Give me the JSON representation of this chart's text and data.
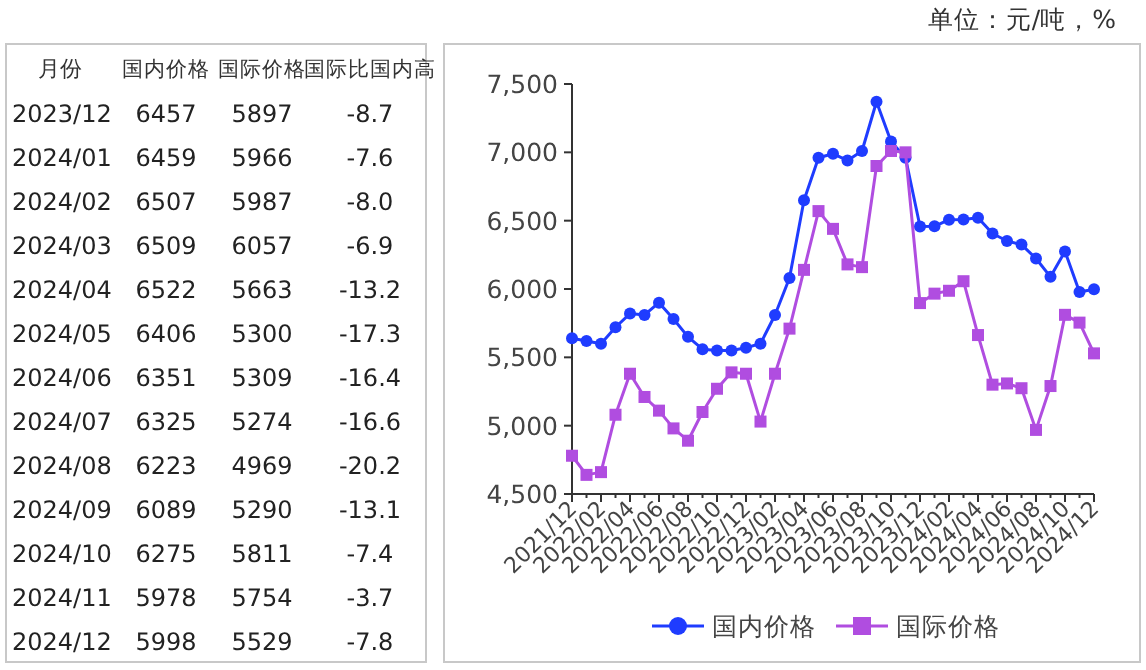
{
  "chart_data": [
    {
      "type": "heatmap",
      "ylabel": "月份",
      "categories": [
        "国内价格",
        "国际价格",
        "国际比国内高"
      ],
      "y_categories": [
        "2023/12",
        "2024/01",
        "2024/02",
        "2024/03",
        "2024/04",
        "2024/05",
        "2024/06",
        "2024/07",
        "2024/08",
        "2024/09",
        "2024/10",
        "2024/11",
        "2024/12"
      ],
      "cells": [
        [
          6457,
          5897,
          -8.7
        ],
        [
          6459,
          5966,
          -7.6
        ],
        [
          6507,
          5987,
          -8.0
        ],
        [
          6509,
          6057,
          -6.9
        ],
        [
          6522,
          5663,
          -13.2
        ],
        [
          6406,
          5300,
          -17.3
        ],
        [
          6351,
          5309,
          -16.4
        ],
        [
          6325,
          5274,
          -16.6
        ],
        [
          6223,
          4969,
          -20.2
        ],
        [
          6089,
          5290,
          -13.1
        ],
        [
          6275,
          5811,
          -7.4
        ],
        [
          5978,
          5754,
          -3.7
        ],
        [
          5998,
          5529,
          -7.8
        ]
      ],
      "data_labels": true,
      "cell_labels": [
        [
          "6457",
          "5897",
          "-8.7"
        ],
        [
          "6459",
          "5966",
          "-7.6"
        ],
        [
          "6507",
          "5987",
          "-8.0"
        ],
        [
          "6509",
          "6057",
          "-6.9"
        ],
        [
          "6522",
          "5663",
          "-13.2"
        ],
        [
          "6406",
          "5300",
          "-17.3"
        ],
        [
          "6351",
          "5309",
          "-16.4"
        ],
        [
          "6325",
          "5274",
          "-16.6"
        ],
        [
          "6223",
          "4969",
          "-20.2"
        ],
        [
          "6089",
          "5290",
          "-13.1"
        ],
        [
          "6275",
          "5811",
          "-7.4"
        ],
        [
          "5978",
          "5754",
          "-3.7"
        ],
        [
          "5998",
          "5529",
          "-7.8"
        ]
      ]
    },
    {
      "type": "line",
      "annotations": [
        "单位：元/吨，%"
      ],
      "categories": [
        "2021/12",
        null,
        "2022/02",
        null,
        "2022/04",
        null,
        "2022/06",
        null,
        "2022/08",
        null,
        "2022/10",
        null,
        "2022/12",
        null,
        "2023/02",
        null,
        "2023/04",
        null,
        "2023/06",
        null,
        "2023/08",
        null,
        "2023/10",
        null,
        "2023/12",
        null,
        "2024/02",
        null,
        "2024/04",
        null,
        "2024/06",
        null,
        "2024/08",
        null,
        "2024/10",
        null,
        "2024/12"
      ],
      "ylim": [
        4500,
        7500
      ],
      "yticks": [
        {
          "value": 4500,
          "label": "4,500"
        },
        {
          "value": 5000,
          "label": "5,000"
        },
        {
          "value": 5500,
          "label": "5,500"
        },
        {
          "value": 6000,
          "label": "6,000"
        },
        {
          "value": 6500,
          "label": "6,500"
        },
        {
          "value": 7000,
          "label": "7,000"
        },
        {
          "value": 7500,
          "label": "7,500"
        }
      ],
      "grid": false,
      "legend": "bottom",
      "line_style": "solid",
      "series": [
        {
          "name": "国内价格",
          "color": "#1f3cff",
          "marker": "circle",
          "values": [
            5640,
            5620,
            5600,
            5720,
            5820,
            5810,
            5900,
            5780,
            5650,
            5560,
            5550,
            5550,
            5570,
            5600,
            5810,
            6080,
            6650,
            6960,
            6990,
            6940,
            7010,
            7370,
            7080,
            6960,
            6457,
            6459,
            6507,
            6509,
            6522,
            6406,
            6351,
            6325,
            6223,
            6089,
            6275,
            5978,
            5998
          ]
        },
        {
          "name": "国际价格",
          "color": "#b04de0",
          "marker": "square",
          "values": [
            4780,
            4640,
            4660,
            5080,
            5380,
            5210,
            5110,
            4980,
            4890,
            5100,
            5270,
            5390,
            5380,
            5030,
            5380,
            5710,
            6140,
            6570,
            6440,
            6180,
            6160,
            6900,
            7010,
            7000,
            5897,
            5966,
            5987,
            6057,
            5663,
            5300,
            5309,
            5274,
            4969,
            5290,
            5811,
            5754,
            5529
          ]
        }
      ]
    }
  ]
}
